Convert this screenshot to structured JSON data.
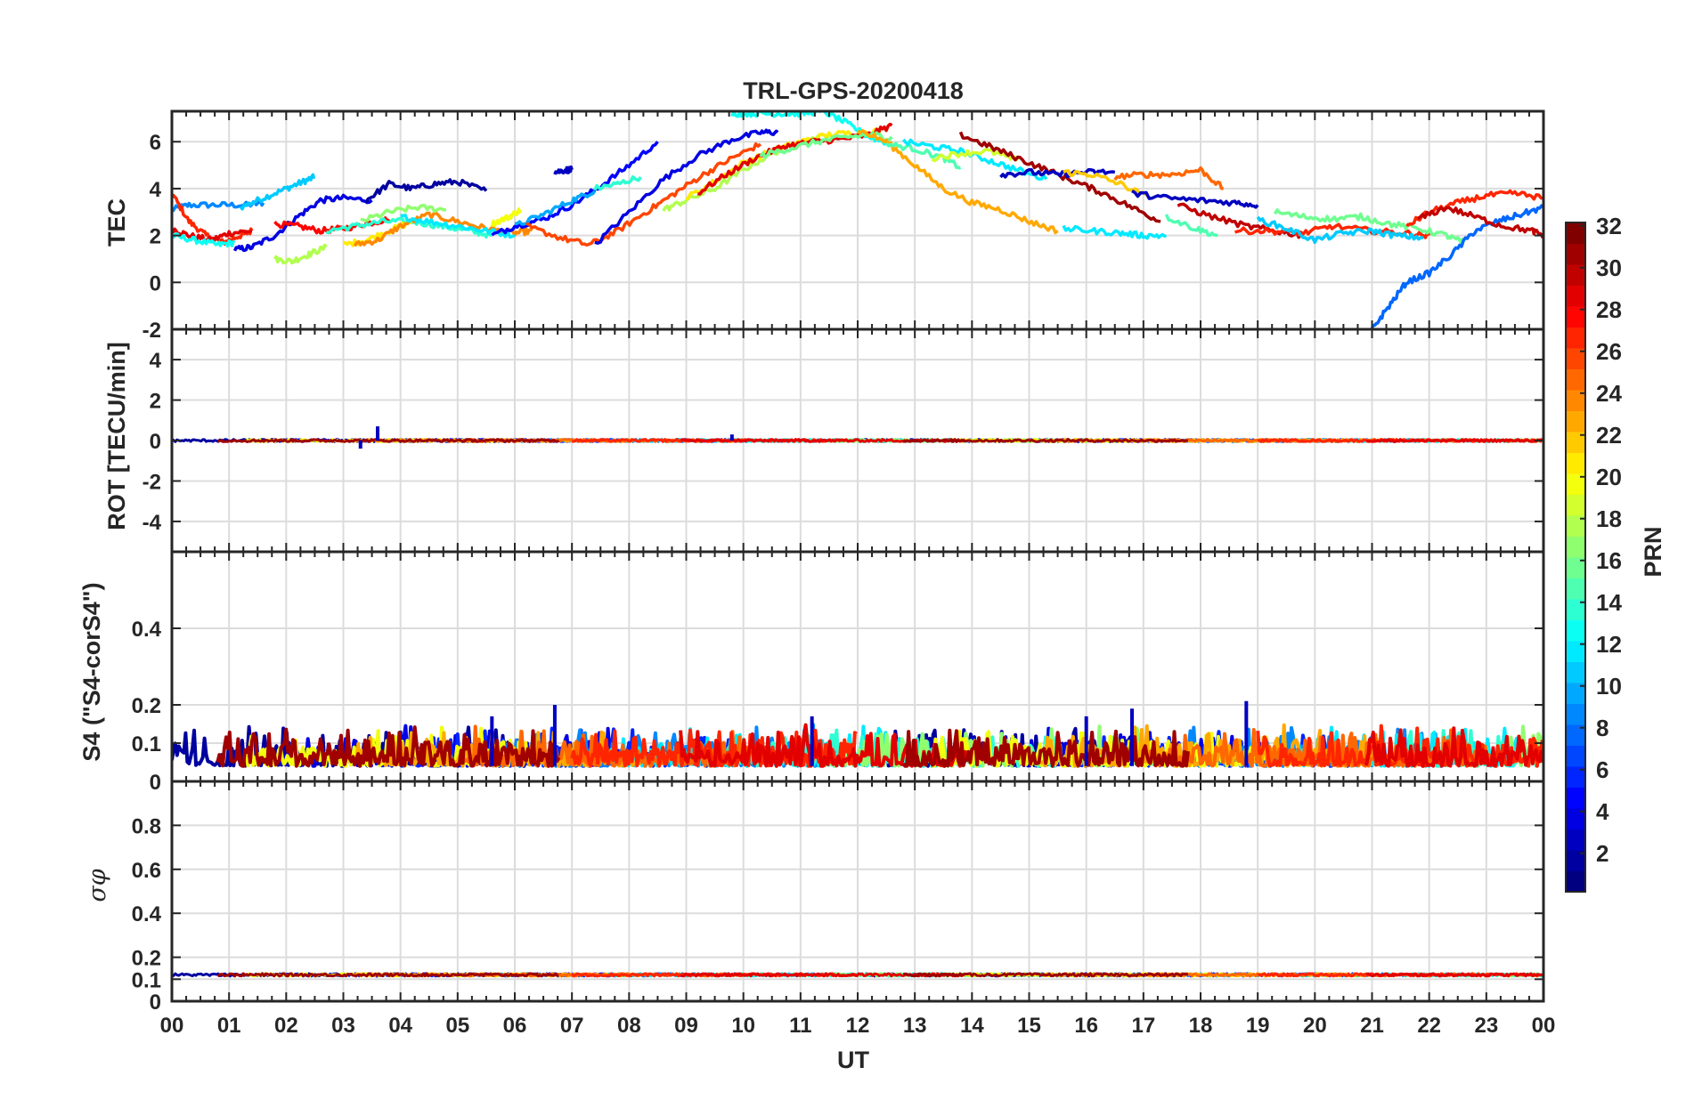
{
  "chart_data": {
    "type": "line",
    "title": "TRL-GPS-20200418",
    "xlabel": "UT",
    "x_ticks": [
      "00",
      "01",
      "02",
      "03",
      "04",
      "05",
      "06",
      "07",
      "08",
      "09",
      "10",
      "11",
      "12",
      "13",
      "14",
      "15",
      "16",
      "17",
      "18",
      "19",
      "20",
      "21",
      "22",
      "23",
      "00"
    ],
    "xlim_hours": [
      0,
      24
    ],
    "colorbar": {
      "label": "PRN",
      "range": [
        1,
        32
      ],
      "ticks": [
        "2",
        "4",
        "6",
        "8",
        "10",
        "12",
        "14",
        "16",
        "18",
        "20",
        "22",
        "24",
        "26",
        "28",
        "30",
        "32"
      ],
      "colormap": "jet"
    },
    "panels": [
      {
        "id": "tec",
        "ylabel": "TEC",
        "ylim": [
          -2,
          7.3
        ],
        "yticks": [
          "-2",
          "0",
          "2",
          "4",
          "6"
        ],
        "series": [
          {
            "prn": 9,
            "x": [
              0.0,
              0.3,
              0.8,
              1.3,
              1.6
            ],
            "y": [
              3.1,
              3.3,
              3.3,
              3.3,
              3.4
            ]
          },
          {
            "prn": 11,
            "x": [
              1.2,
              1.6,
              2.0,
              2.3,
              2.5
            ],
            "y": [
              3.2,
              3.6,
              4.0,
              4.3,
              4.5
            ]
          },
          {
            "prn": 27,
            "x": [
              0.0,
              0.3,
              0.6,
              0.9,
              1.2,
              1.4
            ],
            "y": [
              3.8,
              2.6,
              2.0,
              1.7,
              2.0,
              2.2
            ]
          },
          {
            "prn": 29,
            "x": [
              0.0,
              0.3,
              0.7,
              1.0,
              1.4
            ],
            "y": [
              2.3,
              2.0,
              1.8,
              2.1,
              2.2
            ]
          },
          {
            "prn": 13,
            "x": [
              0.0,
              0.4,
              0.8,
              1.1
            ],
            "y": [
              2.0,
              1.8,
              1.6,
              1.7
            ]
          },
          {
            "prn": 4,
            "x": [
              1.1,
              1.4,
              1.8,
              2.2,
              2.6,
              3.0,
              3.5
            ],
            "y": [
              1.4,
              1.5,
              2.0,
              2.8,
              3.5,
              3.6,
              3.5
            ]
          },
          {
            "prn": 28,
            "x": [
              1.8,
              2.2,
              2.6,
              3.0,
              3.4,
              3.8
            ],
            "y": [
              2.5,
              2.4,
              2.2,
              2.3,
              2.5,
              2.7
            ]
          },
          {
            "prn": 18,
            "x": [
              1.8,
              2.1,
              2.4,
              2.7
            ],
            "y": [
              1.0,
              0.9,
              1.2,
              1.5
            ]
          },
          {
            "prn": 14,
            "x": [
              2.7,
              3.2,
              3.7,
              4.2,
              4.7,
              5.2,
              5.6
            ],
            "y": [
              2.2,
              2.4,
              2.6,
              2.6,
              2.4,
              2.2,
              2.0
            ]
          },
          {
            "prn": 21,
            "x": [
              3.0,
              3.4,
              3.8,
              4.2
            ],
            "y": [
              1.6,
              1.8,
              2.2,
              2.6
            ]
          },
          {
            "prn": 24,
            "x": [
              3.2,
              3.6,
              4.0,
              4.5,
              5.0,
              5.5,
              6.0,
              6.3
            ],
            "y": [
              1.6,
              1.8,
              2.4,
              2.9,
              2.6,
              2.3,
              2.1,
              2.2
            ]
          },
          {
            "prn": 17,
            "x": [
              3.3,
              3.8,
              4.3,
              4.8
            ],
            "y": [
              2.6,
              3.0,
              3.2,
              3.1
            ]
          },
          {
            "prn": 2,
            "x": [
              3.4,
              3.8,
              4.2,
              4.6,
              5.0,
              5.5
            ],
            "y": [
              3.5,
              4.2,
              4.0,
              4.2,
              4.3,
              3.9
            ]
          },
          {
            "prn": 12,
            "x": [
              4.0,
              4.5,
              5.0,
              5.5,
              6.0
            ],
            "y": [
              2.8,
              2.6,
              2.4,
              2.2,
              2.0
            ]
          },
          {
            "prn": 20,
            "x": [
              5.6,
              5.9,
              6.1
            ],
            "y": [
              2.5,
              2.8,
              3.1
            ]
          },
          {
            "prn": 5,
            "x": [
              5.6,
              6.0,
              6.5,
              7.0,
              7.5,
              8.0,
              8.5
            ],
            "y": [
              2.0,
              2.4,
              2.7,
              3.3,
              4.1,
              5.0,
              6.0
            ]
          },
          {
            "prn": 10,
            "x": [
              6.0,
              6.5,
              7.0,
              7.4
            ],
            "y": [
              2.4,
              2.9,
              3.5,
              3.9
            ]
          },
          {
            "prn": 3,
            "x": [
              6.7,
              6.9,
              7.0
            ],
            "y": [
              4.7,
              4.8,
              4.8
            ]
          },
          {
            "prn": 26,
            "x": [
              6.2,
              6.8,
              7.3,
              7.8,
              8.3,
              8.8,
              9.3,
              9.8,
              10.3
            ],
            "y": [
              2.4,
              1.9,
              1.6,
              2.2,
              3.0,
              3.8,
              4.6,
              5.3,
              5.9
            ]
          },
          {
            "prn": 14,
            "x": [
              7.4,
              7.8,
              8.2
            ],
            "y": [
              4.0,
              4.2,
              4.5
            ]
          },
          {
            "prn": 4,
            "x": [
              7.4,
              8.0,
              8.6,
              9.2,
              9.8,
              10.3,
              10.6
            ],
            "y": [
              1.6,
              3.0,
              4.4,
              5.4,
              6.1,
              6.4,
              6.4
            ]
          },
          {
            "prn": 18,
            "x": [
              8.6,
              9.0,
              9.5,
              10.0,
              10.5,
              11.0,
              11.5
            ],
            "y": [
              3.1,
              3.5,
              4.0,
              4.8,
              5.5,
              6.0,
              6.3
            ]
          },
          {
            "prn": 21,
            "x": [
              9.0,
              9.5,
              10.0,
              10.5,
              11.0,
              11.5,
              12.0,
              12.5
            ],
            "y": [
              3.6,
              4.3,
              5.1,
              5.6,
              6.0,
              6.3,
              6.4,
              6.5
            ]
          },
          {
            "prn": 13,
            "x": [
              9.8,
              10.2,
              10.6,
              11.0,
              11.4,
              11.8,
              12.2,
              12.6
            ],
            "y": [
              7.2,
              7.2,
              7.2,
              7.2,
              7.3,
              6.8,
              6.2,
              5.9
            ]
          },
          {
            "prn": 29,
            "x": [
              9.2,
              9.7,
              10.2,
              10.7,
              11.2,
              11.7,
              12.2,
              12.6
            ],
            "y": [
              3.8,
              4.6,
              5.3,
              5.8,
              6.0,
              6.1,
              6.3,
              6.7
            ]
          },
          {
            "prn": 16,
            "x": [
              10.3,
              10.8,
              11.3,
              11.8,
              12.3,
              12.6
            ],
            "y": [
              5.4,
              5.7,
              6.0,
              6.2,
              6.3,
              6.1
            ]
          },
          {
            "prn": 23,
            "x": [
              12.0,
              12.5,
              13.0,
              13.5,
              14.0,
              14.5,
              15.0,
              15.5
            ],
            "y": [
              6.5,
              6.0,
              5.0,
              4.0,
              3.4,
              3.1,
              2.6,
              2.2
            ]
          },
          {
            "prn": 15,
            "x": [
              12.5,
              13.0,
              13.5,
              13.8
            ],
            "y": [
              5.9,
              5.7,
              5.3,
              4.9
            ]
          },
          {
            "prn": 12,
            "x": [
              12.8,
              13.3,
              13.8,
              14.3,
              14.8,
              15.3
            ],
            "y": [
              6.0,
              5.8,
              5.6,
              5.2,
              4.8,
              4.4
            ]
          },
          {
            "prn": 19,
            "x": [
              13.3,
              13.8,
              14.3,
              14.8
            ],
            "y": [
              5.3,
              5.5,
              5.6,
              5.2
            ]
          },
          {
            "prn": 31,
            "x": [
              13.8,
              14.3,
              14.8,
              15.3,
              15.8,
              16.3,
              16.8,
              17.3
            ],
            "y": [
              6.3,
              5.8,
              5.3,
              4.8,
              4.3,
              3.8,
              3.2,
              2.6
            ]
          },
          {
            "prn": 3,
            "x": [
              14.5,
              15.0,
              15.5,
              16.0,
              16.5
            ],
            "y": [
              4.6,
              4.7,
              4.6,
              4.7,
              4.7
            ]
          },
          {
            "prn": 22,
            "x": [
              15.6,
              16.1,
              16.6,
              17.1
            ],
            "y": [
              4.7,
              4.6,
              4.2,
              3.6
            ]
          },
          {
            "prn": 25,
            "x": [
              16.5,
              17.0,
              17.5,
              18.0,
              18.4
            ],
            "y": [
              4.5,
              4.6,
              4.6,
              4.8,
              4.0
            ]
          },
          {
            "prn": 12,
            "x": [
              15.6,
              16.1,
              16.6,
              17.0,
              17.4
            ],
            "y": [
              2.3,
              2.2,
              2.1,
              2.0,
              2.0
            ]
          },
          {
            "prn": 3,
            "x": [
              16.8,
              17.4,
              18.0,
              18.6,
              19.0
            ],
            "y": [
              3.8,
              3.6,
              3.5,
              3.4,
              3.3
            ]
          },
          {
            "prn": 15,
            "x": [
              17.4,
              17.9,
              18.3
            ],
            "y": [
              2.8,
              2.3,
              2.0
            ]
          },
          {
            "prn": 30,
            "x": [
              17.6,
              18.2,
              18.8,
              19.3,
              19.8
            ],
            "y": [
              3.3,
              2.8,
              2.4,
              2.2,
              2.0
            ]
          },
          {
            "prn": 27,
            "x": [
              18.6,
              19.2,
              19.8,
              20.3,
              21.0,
              21.6,
              22.0
            ],
            "y": [
              2.2,
              2.2,
              2.1,
              2.4,
              2.2,
              2.1,
              2.0
            ]
          },
          {
            "prn": 11,
            "x": [
              19.0,
              19.5,
              20.0,
              20.5,
              21.0,
              21.4,
              21.9
            ],
            "y": [
              2.7,
              2.3,
              1.8,
              2.1,
              2.2,
              2.0,
              1.9
            ]
          },
          {
            "prn": 16,
            "x": [
              19.3,
              19.8,
              20.3,
              20.8,
              21.3,
              21.8,
              22.3,
              22.6
            ],
            "y": [
              3.0,
              2.8,
              2.7,
              2.8,
              2.5,
              2.3,
              2.0,
              1.7
            ]
          },
          {
            "prn": 8,
            "x": [
              21.0,
              21.3,
              21.6,
              22.0,
              22.4,
              22.8,
              23.2,
              23.6,
              24.0
            ],
            "y": [
              -2.0,
              -1.0,
              0.0,
              0.4,
              1.2,
              2.2,
              2.6,
              2.9,
              3.2
            ]
          },
          {
            "prn": 27,
            "x": [
              21.6,
              22.0,
              22.5,
              23.0,
              23.5,
              24.0
            ],
            "y": [
              2.4,
              3.0,
              3.4,
              3.7,
              3.8,
              3.6
            ]
          },
          {
            "prn": 30,
            "x": [
              21.8,
              22.3,
              22.8,
              23.3,
              23.8,
              24.0
            ],
            "y": [
              2.7,
              3.2,
              2.8,
              2.4,
              2.2,
              2.0
            ]
          }
        ]
      },
      {
        "id": "rot",
        "ylabel": "ROT [TECU/min]",
        "ylim": [
          -5.5,
          5.5
        ],
        "yticks": [
          "-4",
          "-2",
          "0",
          "2",
          "4"
        ],
        "baseline": 0.0,
        "noise": 0.12,
        "spikes": [
          {
            "x": 3.6,
            "y": 0.7
          },
          {
            "x": 3.3,
            "y": -0.4
          },
          {
            "x": 9.8,
            "y": 0.3
          }
        ]
      },
      {
        "id": "s4",
        "ylabel": "S4 (\"S4-corS4\")",
        "ylim": [
          0,
          0.6
        ],
        "yticks": [
          "0",
          "0.1",
          "0.2",
          "0.4"
        ],
        "baseline": 0.04,
        "noise": 0.05,
        "spikes": [
          {
            "x": 6.7,
            "y": 0.2
          },
          {
            "x": 18.8,
            "y": 0.21
          },
          {
            "x": 16.0,
            "y": 0.17
          },
          {
            "x": 16.8,
            "y": 0.19
          },
          {
            "x": 11.2,
            "y": 0.17
          },
          {
            "x": 5.6,
            "y": 0.17
          }
        ]
      },
      {
        "id": "sigma",
        "ylabel": "σφ",
        "ylim": [
          0,
          1.0
        ],
        "yticks": [
          "0",
          "0.1",
          "0.2",
          "0.4",
          "0.6",
          "0.8"
        ],
        "baseline": 0.12,
        "noise": 0.012
      }
    ]
  }
}
